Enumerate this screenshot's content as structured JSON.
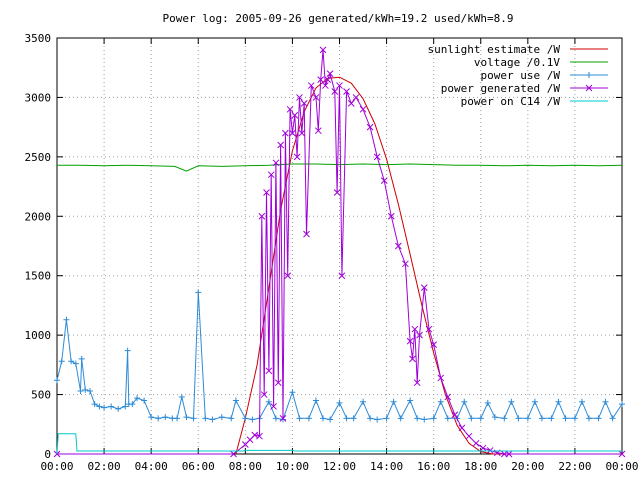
{
  "chart_data": {
    "type": "line",
    "title": "Power log: 2005-09-26 generated/kWh=19.2 used/kWh=8.9",
    "xlabel": "",
    "ylabel": "",
    "x_unit": "hours",
    "xlim": [
      0,
      24
    ],
    "ylim": [
      0,
      3500
    ],
    "grid": true,
    "legend_position": "top-right",
    "x_ticks": [
      0,
      2,
      4,
      6,
      8,
      10,
      12,
      14,
      16,
      18,
      20,
      22,
      24
    ],
    "x_tick_labels": [
      "00:00",
      "02:00",
      "04:00",
      "06:00",
      "08:00",
      "10:00",
      "12:00",
      "14:00",
      "16:00",
      "18:00",
      "20:00",
      "22:00",
      "00:00"
    ],
    "y_ticks": [
      0,
      500,
      1000,
      1500,
      2000,
      2500,
      3000,
      3500
    ],
    "y_tick_labels": [
      "0",
      "500",
      "1000",
      "1500",
      "2000",
      "2500",
      "3000",
      "3500"
    ],
    "series": [
      {
        "name": "sunlight estimate /W",
        "color": "#cc0000",
        "marker": "none",
        "x": [
          7.6,
          8.0,
          8.5,
          9.0,
          9.5,
          10.0,
          10.5,
          11.0,
          11.5,
          12.0,
          12.5,
          13.0,
          13.5,
          14.0,
          14.5,
          15.0,
          15.5,
          16.0,
          16.5,
          17.0,
          17.5,
          18.0,
          18.5,
          19.0
        ],
        "y": [
          0,
          300,
          750,
          1400,
          2050,
          2550,
          2880,
          3080,
          3160,
          3170,
          3120,
          2990,
          2780,
          2480,
          2100,
          1680,
          1250,
          850,
          500,
          240,
          90,
          20,
          0,
          0
        ]
      },
      {
        "name": "voltage /0.1V",
        "color": "#00a000",
        "marker": "none",
        "x": [
          0,
          1,
          2,
          3,
          4,
          5,
          5.5,
          6,
          7,
          8,
          9,
          10,
          11,
          12,
          13,
          14,
          15,
          16,
          17,
          18,
          19,
          20,
          21,
          22,
          23,
          24
        ],
        "y": [
          2430,
          2430,
          2425,
          2430,
          2425,
          2420,
          2380,
          2425,
          2420,
          2425,
          2430,
          2440,
          2440,
          2435,
          2440,
          2435,
          2440,
          2435,
          2430,
          2430,
          2425,
          2430,
          2425,
          2430,
          2425,
          2430
        ]
      },
      {
        "name": "power use /W",
        "color": "#2e8bd6",
        "marker": "plus",
        "x": [
          0.0,
          0.2,
          0.4,
          0.6,
          0.8,
          1.0,
          1.05,
          1.2,
          1.4,
          1.6,
          1.8,
          2.0,
          2.3,
          2.6,
          2.9,
          3.0,
          3.05,
          3.2,
          3.4,
          3.7,
          4.0,
          4.3,
          4.6,
          4.9,
          5.1,
          5.3,
          5.5,
          5.8,
          6.0,
          6.3,
          6.6,
          7.0,
          7.4,
          7.6,
          8.0,
          8.3,
          8.6,
          9.0,
          9.3,
          9.6,
          10.0,
          10.3,
          10.7,
          11.0,
          11.3,
          11.6,
          12.0,
          12.3,
          12.6,
          13.0,
          13.3,
          13.6,
          14.0,
          14.3,
          14.6,
          15.0,
          15.3,
          15.6,
          16.0,
          16.3,
          16.6,
          17.0,
          17.3,
          17.6,
          18.0,
          18.3,
          18.6,
          19.0,
          19.3,
          19.6,
          20.0,
          20.3,
          20.6,
          21.0,
          21.3,
          21.6,
          22.0,
          22.3,
          22.6,
          23.0,
          23.3,
          23.6,
          24.0
        ],
        "y": [
          620,
          780,
          1130,
          780,
          760,
          530,
          800,
          540,
          530,
          420,
          400,
          390,
          400,
          380,
          400,
          870,
          420,
          420,
          470,
          450,
          310,
          300,
          310,
          300,
          300,
          480,
          310,
          300,
          1360,
          300,
          290,
          310,
          300,
          450,
          300,
          290,
          300,
          440,
          300,
          290,
          520,
          300,
          300,
          450,
          300,
          290,
          430,
          300,
          300,
          440,
          300,
          290,
          300,
          440,
          300,
          450,
          300,
          290,
          300,
          440,
          300,
          300,
          440,
          300,
          300,
          430,
          310,
          300,
          440,
          300,
          300,
          440,
          300,
          300,
          440,
          300,
          300,
          440,
          300,
          300,
          440,
          300,
          420
        ]
      },
      {
        "name": "power generated /W",
        "color": "#a000d8",
        "marker": "cross",
        "x": [
          0,
          7.5,
          8.0,
          8.2,
          8.4,
          8.6,
          8.7,
          8.8,
          8.9,
          9.0,
          9.1,
          9.2,
          9.3,
          9.4,
          9.5,
          9.6,
          9.7,
          9.8,
          9.9,
          10.0,
          10.1,
          10.2,
          10.3,
          10.4,
          10.5,
          10.6,
          10.8,
          11.0,
          11.1,
          11.2,
          11.3,
          11.4,
          11.5,
          11.6,
          11.8,
          11.9,
          12.0,
          12.1,
          12.3,
          12.5,
          12.7,
          13.0,
          13.3,
          13.6,
          13.9,
          14.2,
          14.5,
          14.8,
          15.0,
          15.1,
          15.2,
          15.3,
          15.4,
          15.6,
          15.8,
          16.0,
          16.3,
          16.6,
          16.9,
          17.2,
          17.5,
          17.8,
          18.1,
          18.4,
          18.7,
          19.0,
          19.2,
          24.0
        ],
        "y": [
          0,
          0,
          80,
          120,
          160,
          150,
          2000,
          500,
          2200,
          700,
          2350,
          400,
          2450,
          600,
          2600,
          300,
          2700,
          1500,
          2900,
          2700,
          2850,
          2500,
          3000,
          2700,
          2950,
          1850,
          3100,
          3000,
          2720,
          3150,
          3400,
          3100,
          3150,
          3200,
          3050,
          2200,
          3100,
          1500,
          3050,
          2950,
          3000,
          2900,
          2750,
          2500,
          2300,
          2000,
          1750,
          1600,
          950,
          800,
          1050,
          600,
          1000,
          1400,
          1050,
          920,
          640,
          480,
          330,
          220,
          150,
          90,
          50,
          30,
          10,
          0,
          0,
          0
        ]
      },
      {
        "name": "power on C14 /W",
        "color": "#00c8c8",
        "marker": "none",
        "x": [
          0,
          0.05,
          0.8,
          0.85,
          7.9,
          8.0,
          10.0,
          10.1,
          24.0
        ],
        "y": [
          0,
          170,
          170,
          25,
          25,
          30,
          30,
          25,
          25
        ]
      }
    ]
  }
}
